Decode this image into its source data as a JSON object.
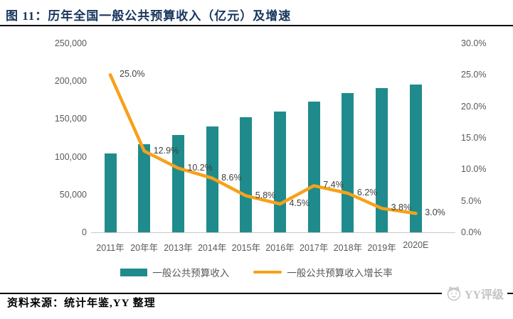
{
  "title": {
    "label": "图 11：历年全国一般公共预算收入（亿元）及增速"
  },
  "chart_data": {
    "type": "bar",
    "categories": [
      "2011年",
      "20年年",
      "2013年",
      "2014年",
      "2015年",
      "2016年",
      "2017年",
      "2018年",
      "2019年",
      "2020E"
    ],
    "series": [
      {
        "name": "一般公共预算收入",
        "type": "bar",
        "color": "#208B8C",
        "values": [
          104000,
          117000,
          129000,
          140000,
          152000,
          160000,
          173000,
          184000,
          191000,
          196000
        ]
      },
      {
        "name": "一般公共预算收入增长率",
        "type": "line",
        "color": "#F7A11A",
        "values": [
          25.0,
          12.9,
          10.2,
          8.6,
          5.8,
          4.5,
          7.4,
          6.2,
          3.8,
          3.0
        ],
        "point_labels": [
          "25.0%",
          "12.9%",
          "10.2%",
          "8.6%",
          "5.8%",
          "4.5%",
          "7.4%",
          "6.2%",
          "3.8%",
          "3.0%"
        ]
      }
    ],
    "left_axis": {
      "min": 0,
      "max": 250000,
      "ticks": [
        "250,000",
        "200,000",
        "150,000",
        "100,000",
        "50,000",
        "0"
      ]
    },
    "right_axis": {
      "min": 0,
      "max": 30,
      "ticks": [
        "30.0%",
        "25.0%",
        "20.0%",
        "15.0%",
        "10.0%",
        "5.0%",
        "0.0%"
      ]
    },
    "grid": false,
    "legend_position": "bottom",
    "xlabel": "",
    "ylabel": ""
  },
  "footer": {
    "source_label": "资料来源：",
    "source_text": "统计年鉴,YY 整理",
    "logo_text": "YY评级"
  }
}
